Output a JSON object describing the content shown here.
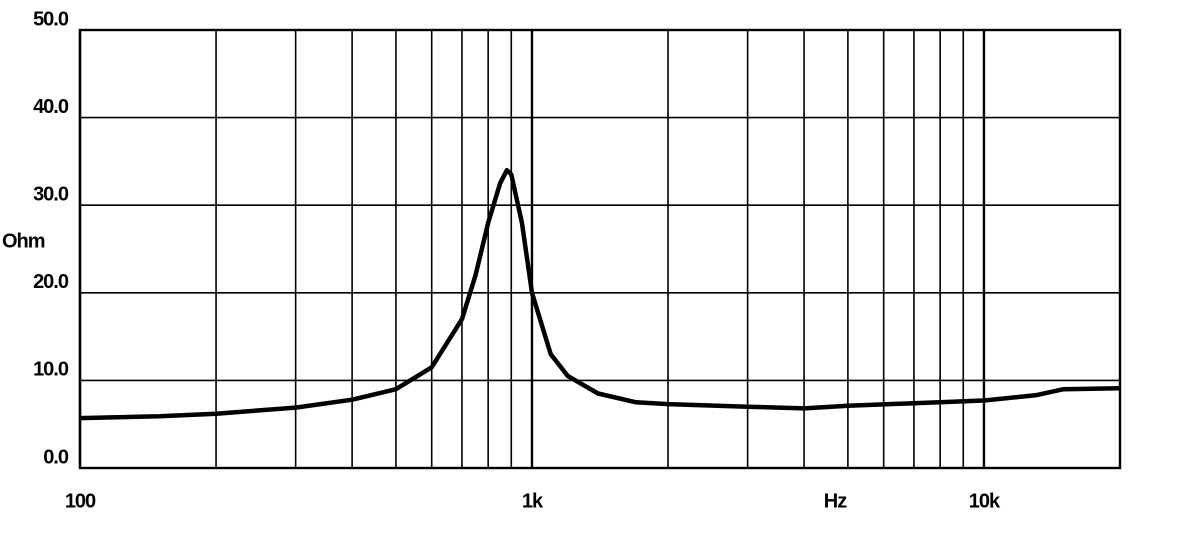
{
  "chart_data": {
    "type": "line",
    "x_label": "Hz",
    "y_label": "Ohm",
    "xscale": "log",
    "xlim": [
      100,
      20000
    ],
    "ylim": [
      0,
      50
    ],
    "xticks": [
      {
        "value": 100,
        "label": "100"
      },
      {
        "value": 1000,
        "label": "1k"
      },
      {
        "value": 10000,
        "label": "10k"
      }
    ],
    "xminor": [
      200,
      300,
      400,
      500,
      600,
      700,
      800,
      900,
      2000,
      3000,
      4000,
      5000,
      6000,
      7000,
      8000,
      9000
    ],
    "yticks": [
      {
        "value": 0,
        "label": "0.0"
      },
      {
        "value": 10,
        "label": "10.0"
      },
      {
        "value": 20,
        "label": "20.0"
      },
      {
        "value": 30,
        "label": "30.0"
      },
      {
        "value": 40,
        "label": "40.0"
      },
      {
        "value": 50,
        "label": "50.0"
      }
    ],
    "grid": true,
    "series": [
      {
        "color": "#000000",
        "x": [
          100,
          150,
          200,
          300,
          400,
          500,
          600,
          700,
          750,
          800,
          850,
          880,
          900,
          950,
          1000,
          1100,
          1200,
          1400,
          1700,
          2000,
          3000,
          4000,
          5000,
          7000,
          10000,
          13000,
          15000,
          20000
        ],
        "values": [
          5.7,
          5.9,
          6.2,
          6.9,
          7.8,
          9.0,
          11.5,
          17,
          22,
          28,
          32.5,
          34,
          33.5,
          28,
          20,
          13,
          10.5,
          8.5,
          7.5,
          7.3,
          7.0,
          6.8,
          7.1,
          7.4,
          7.7,
          8.3,
          9.0,
          9.1
        ]
      }
    ]
  }
}
